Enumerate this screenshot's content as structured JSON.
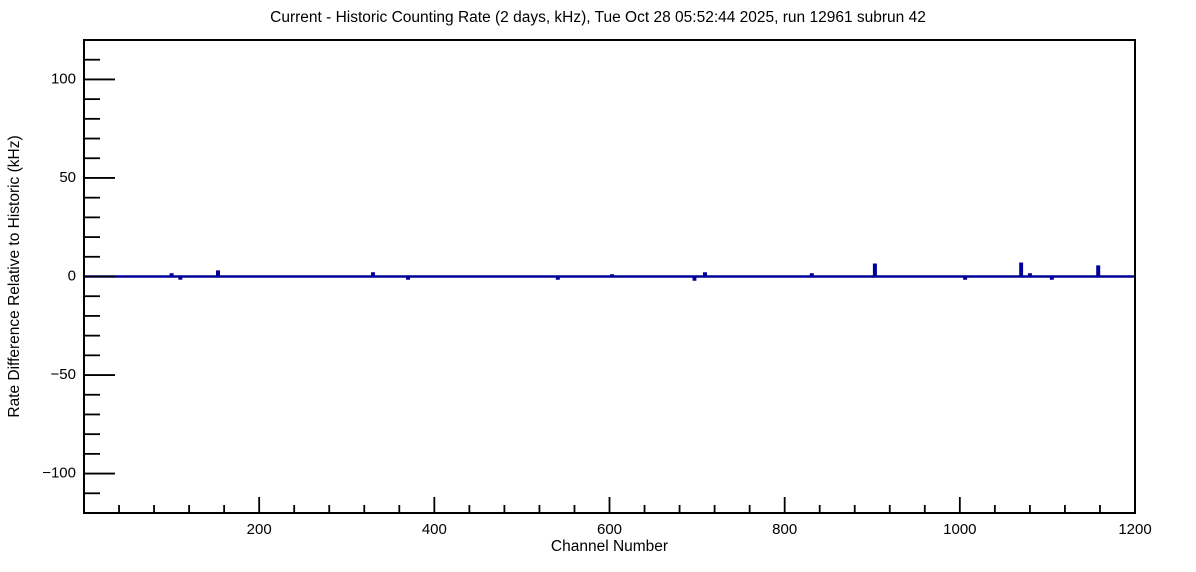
{
  "chart_data": {
    "type": "line",
    "title": "Current - Historic Counting Rate (2 days, kHz), Tue Oct 28 05:52:44 2025, run 12961 subrun 42",
    "xlabel": "Channel Number",
    "ylabel": "Rate Difference Relative to Historic (kHz)",
    "xlim": [
      0,
      1200
    ],
    "ylim": [
      -120,
      120
    ],
    "x_major_ticks": [
      200,
      400,
      600,
      800,
      1000,
      1200
    ],
    "x_minor_step": 40,
    "y_major_ticks": [
      -100,
      -50,
      0,
      50,
      100
    ],
    "y_minor_step": 10,
    "grid": false,
    "legend": "none",
    "line_color": "#000099",
    "baseline_value": 0,
    "spikes": [
      {
        "channel": 100,
        "value": 1
      },
      {
        "channel": 110,
        "value": -1
      },
      {
        "channel": 153,
        "value": 2.5
      },
      {
        "channel": 330,
        "value": 1.5
      },
      {
        "channel": 370,
        "value": -1
      },
      {
        "channel": 541,
        "value": -1
      },
      {
        "channel": 603,
        "value": 0.5
      },
      {
        "channel": 697,
        "value": -1.5
      },
      {
        "channel": 709,
        "value": 1.5
      },
      {
        "channel": 831,
        "value": 1
      },
      {
        "channel": 903,
        "value": 6
      },
      {
        "channel": 1006,
        "value": -1
      },
      {
        "channel": 1070,
        "value": 6.5
      },
      {
        "channel": 1080,
        "value": 1
      },
      {
        "channel": 1105,
        "value": -1
      },
      {
        "channel": 1158,
        "value": 5
      }
    ]
  }
}
